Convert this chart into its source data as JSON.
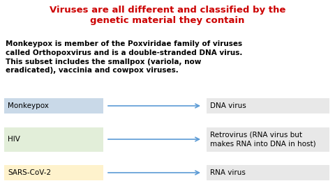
{
  "title_line1": "Viruses are all different and classified by the",
  "title_line2": "genetic material they contain",
  "title_color": "#cc0000",
  "title_fontsize": 9.5,
  "body_text": "Monkeypox is member of the Poxviridae family of viruses\ncalled Orthopoxvirus and is a double-stranded DNA virus.\nThis subset includes the smallpox (variola, now\neradicated), vaccinia and cowpox viruses.",
  "body_fontsize": 7.5,
  "rows": [
    {
      "label": "Monkeypox",
      "label_bg": "#c9d9e8",
      "result": "DNA virus",
      "result_bg": "#e8e8e8",
      "arrow_color": "#5b9bd5"
    },
    {
      "label": "HIV",
      "label_bg": "#e2eed9",
      "result": "Retrovirus (RNA virus but\nmakes RNA into DNA in host)",
      "result_bg": "#e8e8e8",
      "arrow_color": "#5b9bd5"
    },
    {
      "label": "SARS-CoV-2",
      "label_bg": "#fef2cc",
      "result": "RNA virus",
      "result_bg": "#e8e8e8",
      "arrow_color": "#5b9bd5"
    }
  ],
  "bg_color": "#ffffff",
  "figsize": [
    4.8,
    2.7
  ],
  "dpi": 100
}
